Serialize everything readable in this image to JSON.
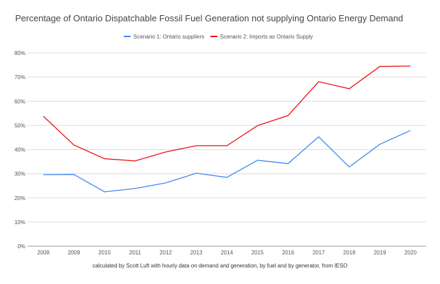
{
  "chart_data": {
    "type": "line",
    "title": "Percentage of Ontario Dispatchable Fossil Fuel Generation not supplying Ontario Energy Demand",
    "xlabel": "calculated by Scott Luft with hourly data on demand and generation, by fuel and by generator, from IESO",
    "ylabel": "",
    "x": [
      "2008",
      "2009",
      "2010",
      "2011",
      "2012",
      "2013",
      "2014",
      "2015",
      "2016",
      "2017",
      "2018",
      "2019",
      "2020"
    ],
    "yticks": [
      "0%",
      "10%",
      "20%",
      "30%",
      "40%",
      "50%",
      "60%",
      "70%",
      "80%"
    ],
    "ylim": [
      0,
      80
    ],
    "grid": true,
    "legend_position": "top",
    "series": [
      {
        "name": "Scenario 1: Ontario suppliers",
        "color": "#4285f4",
        "values": [
          29.6,
          29.7,
          22.5,
          23.9,
          26.2,
          30.2,
          28.5,
          35.6,
          34.2,
          45.3,
          32.8,
          42.2,
          47.9
        ]
      },
      {
        "name": "Scenario 2: Imports as Ontario Supply",
        "color": "#ea0f0f",
        "values": [
          53.8,
          41.9,
          36.2,
          35.3,
          39.0,
          41.6,
          41.6,
          49.9,
          54.1,
          68.1,
          65.2,
          74.4,
          74.6
        ]
      }
    ]
  }
}
